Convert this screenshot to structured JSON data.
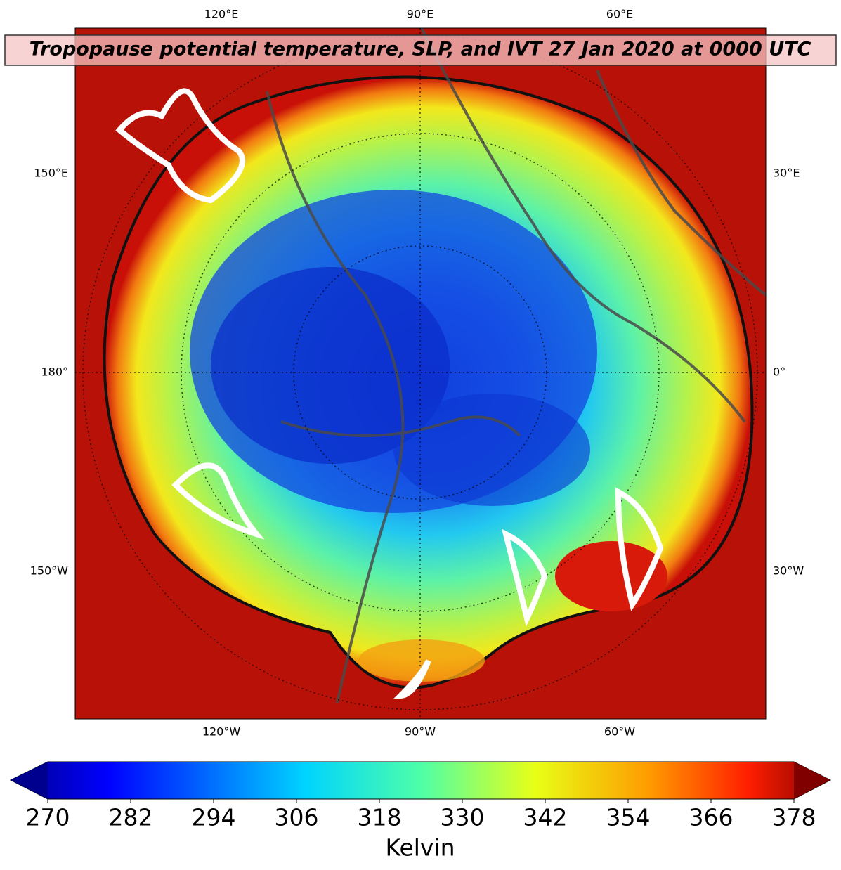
{
  "title": "Tropopause potential temperature, SLP, and IVT 27 Jan 2020 at 0000 UTC",
  "map": {
    "top_labels": [
      "120°E",
      "90°E",
      "60°E"
    ],
    "bottom_labels": [
      "120°W",
      "90°W",
      "60°W"
    ],
    "left_labels": [
      "150°E",
      "180°",
      "150°W"
    ],
    "right_labels": [
      "30°E",
      "0°",
      "30°W"
    ]
  },
  "colorbar": {
    "label": "Kelvin",
    "lim": [
      270,
      378
    ],
    "ticks": [
      270,
      282,
      294,
      306,
      318,
      330,
      342,
      354,
      366,
      378
    ]
  }
}
